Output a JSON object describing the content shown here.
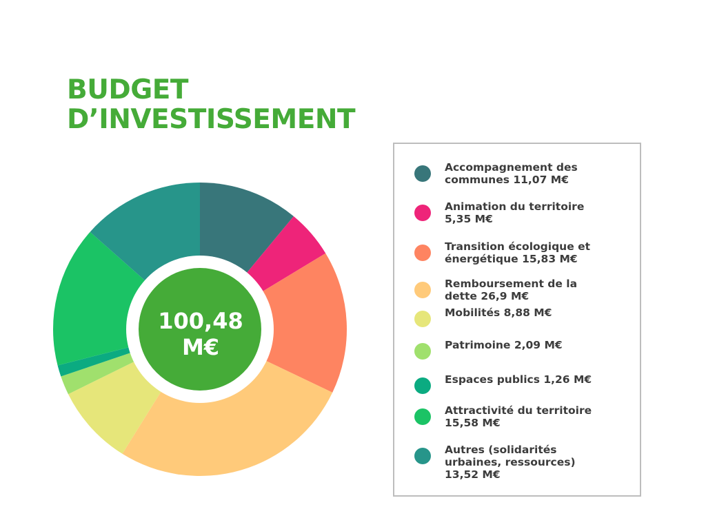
{
  "title": {
    "line1": "BUDGET",
    "line2": "D’INVESTISSEMENT"
  },
  "chart_data": {
    "type": "pie",
    "variant": "donut",
    "unit": "M€",
    "total_label": {
      "line1": "100,48",
      "line2": "M€"
    },
    "total_color": "#45ab38",
    "legend_position": "right",
    "slices": [
      {
        "label": "Accompagnement des communes 11,07 M€",
        "value": 11.07,
        "color": "#38767a"
      },
      {
        "label": "Animation du territoire 5,35 M€",
        "value": 5.35,
        "color": "#ee2479"
      },
      {
        "label": "Transition écologique et énergétique 15,83 M€",
        "value": 15.83,
        "color": "#fe8461"
      },
      {
        "label": "Remboursement de la dette 26,9 M€",
        "value": 26.9,
        "color": "#ffca7a"
      },
      {
        "label": "Mobilités 8,88 M€",
        "value": 8.88,
        "color": "#e6e67a"
      },
      {
        "label": "Patrimoine 2,09 M€",
        "value": 2.09,
        "color": "#a0e06d"
      },
      {
        "label": "Espaces publics 1,26 M€",
        "value": 1.26,
        "color": "#0bab81"
      },
      {
        "label": "Attractivité du territoire 15,58 M€",
        "value": 15.58,
        "color": "#1bc365"
      },
      {
        "label": "Autres (solidarités urbaines, ressources) 13,52 M€",
        "value": 13.52,
        "color": "#27958a"
      }
    ]
  }
}
